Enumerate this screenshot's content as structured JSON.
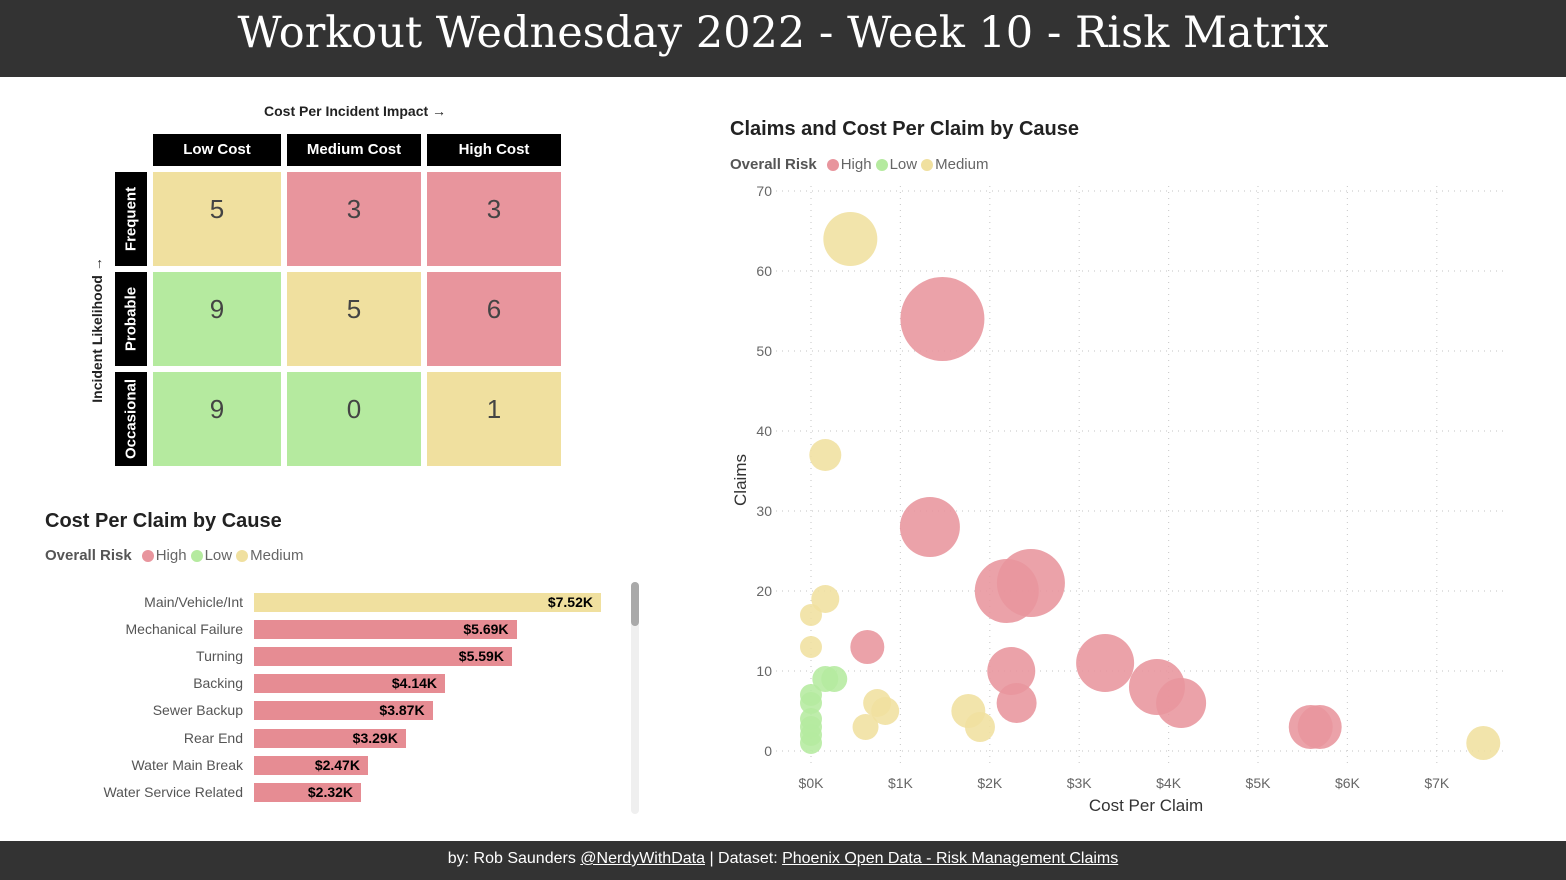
{
  "header": {
    "title": "Workout Wednesday 2022 - Week 10 - Risk Matrix"
  },
  "footer": {
    "prefix": "by: Rob Saunders ",
    "author_link": "@NerdyWithData",
    "separator": " | Dataset: ",
    "dataset_link": "Phoenix Open Data - Risk Management Claims"
  },
  "colors": {
    "High": "#e8959d",
    "Low": "#b5ea9f",
    "Medium": "#f0e09f"
  },
  "matrix": {
    "x_label": "Cost Per Incident Impact →",
    "y_label": "Incident Likelihood →",
    "columns": [
      "Low Cost",
      "Medium Cost",
      "High Cost"
    ],
    "rows": [
      {
        "label": "Frequent",
        "values": [
          "5",
          "3",
          "3"
        ],
        "risk": [
          "Medium",
          "High",
          "High"
        ]
      },
      {
        "label": "Probable",
        "values": [
          "9",
          "5",
          "6"
        ],
        "risk": [
          "Low",
          "Medium",
          "High"
        ]
      },
      {
        "label": "Occasional",
        "values": [
          "9",
          "0",
          "1"
        ],
        "risk": [
          "Low",
          "Low",
          "Medium"
        ]
      }
    ]
  },
  "bar_legend": {
    "title": "Overall Risk",
    "items": [
      "High",
      "Low",
      "Medium"
    ]
  },
  "scatter_legend": {
    "title": "Overall Risk",
    "items": [
      "High",
      "Low",
      "Medium"
    ]
  },
  "chart_data": [
    {
      "type": "bar",
      "orientation": "horizontal",
      "title": "Cost Per Claim by Cause",
      "legend_title": "Overall Risk",
      "legend_position": "top-left",
      "categories": [
        "Main/Vehicle/Int",
        "Mechanical Failure",
        "Turning",
        "Backing",
        "Sewer Backup",
        "Rear End",
        "Water Main Break",
        "Water Service Related"
      ],
      "values": [
        7.52,
        5.69,
        5.59,
        4.14,
        3.87,
        3.29,
        2.47,
        2.32
      ],
      "labels": [
        "$7.52K",
        "$5.69K",
        "$5.59K",
        "$4.14K",
        "$3.87K",
        "$3.29K",
        "$2.47K",
        "$2.32K"
      ],
      "risk": [
        "Medium",
        "High",
        "High",
        "High",
        "High",
        "High",
        "High",
        "High"
      ],
      "units": "$K",
      "xlim": [
        0,
        7.52
      ],
      "scrollable": true
    },
    {
      "type": "scatter",
      "subtype": "bubble",
      "title": "Claims and Cost Per Claim by Cause",
      "legend_title": "Overall Risk",
      "legend_position": "top-left",
      "xlabel": "Cost Per Claim",
      "ylabel": "Claims",
      "xlim": [
        0,
        7.5
      ],
      "ylim": [
        0,
        70
      ],
      "x_ticks": [
        "$0K",
        "$1K",
        "$2K",
        "$3K",
        "$4K",
        "$5K",
        "$6K",
        "$7K"
      ],
      "x_tick_values": [
        0,
        1,
        2,
        3,
        4,
        5,
        6,
        7
      ],
      "y_ticks": [
        0,
        10,
        20,
        30,
        40,
        50,
        60,
        70
      ],
      "grid": true,
      "points": [
        {
          "x": 0.44,
          "y": 64,
          "size": 27,
          "risk": "Medium"
        },
        {
          "x": 1.47,
          "y": 54,
          "size": 42,
          "risk": "High"
        },
        {
          "x": 0.16,
          "y": 37,
          "size": 16,
          "risk": "Medium"
        },
        {
          "x": 1.33,
          "y": 28,
          "size": 30,
          "risk": "High"
        },
        {
          "x": 2.19,
          "y": 20,
          "size": 32,
          "risk": "High"
        },
        {
          "x": 2.46,
          "y": 21,
          "size": 34,
          "risk": "High"
        },
        {
          "x": 0.16,
          "y": 19,
          "size": 14,
          "risk": "Medium"
        },
        {
          "x": 0.0,
          "y": 17,
          "size": 11,
          "risk": "Medium"
        },
        {
          "x": 0.0,
          "y": 13,
          "size": 11,
          "risk": "Medium"
        },
        {
          "x": 0.63,
          "y": 13,
          "size": 17,
          "risk": "High"
        },
        {
          "x": 3.29,
          "y": 11,
          "size": 29,
          "risk": "High"
        },
        {
          "x": 2.24,
          "y": 10,
          "size": 24,
          "risk": "High"
        },
        {
          "x": 3.87,
          "y": 8,
          "size": 28,
          "risk": "High"
        },
        {
          "x": 4.14,
          "y": 6,
          "size": 25,
          "risk": "High"
        },
        {
          "x": 2.3,
          "y": 6,
          "size": 20,
          "risk": "High"
        },
        {
          "x": 5.59,
          "y": 3,
          "size": 22,
          "risk": "High"
        },
        {
          "x": 5.69,
          "y": 3,
          "size": 22,
          "risk": "High"
        },
        {
          "x": 7.52,
          "y": 1,
          "size": 17,
          "risk": "Medium"
        },
        {
          "x": 0.16,
          "y": 9,
          "size": 13,
          "risk": "Low"
        },
        {
          "x": 0.26,
          "y": 9,
          "size": 13,
          "risk": "Low"
        },
        {
          "x": 0.0,
          "y": 7,
          "size": 11,
          "risk": "Low"
        },
        {
          "x": 0.0,
          "y": 6,
          "size": 11,
          "risk": "Low"
        },
        {
          "x": 0.0,
          "y": 4,
          "size": 11,
          "risk": "Low"
        },
        {
          "x": 0.0,
          "y": 3,
          "size": 11,
          "risk": "Low"
        },
        {
          "x": 0.0,
          "y": 2,
          "size": 11,
          "risk": "Low"
        },
        {
          "x": 0.0,
          "y": 1,
          "size": 11,
          "risk": "Low"
        },
        {
          "x": 0.74,
          "y": 6,
          "size": 14,
          "risk": "Medium"
        },
        {
          "x": 0.83,
          "y": 5,
          "size": 14,
          "risk": "Medium"
        },
        {
          "x": 0.61,
          "y": 3,
          "size": 13,
          "risk": "Medium"
        },
        {
          "x": 1.76,
          "y": 5,
          "size": 17,
          "risk": "Medium"
        },
        {
          "x": 1.89,
          "y": 3,
          "size": 15,
          "risk": "Medium"
        }
      ]
    }
  ]
}
